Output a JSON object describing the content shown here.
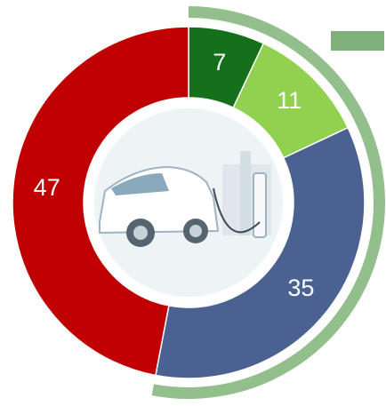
{
  "chart_data": {
    "type": "donut",
    "values": [
      7,
      11,
      35,
      47
    ],
    "colors": [
      "#14701a",
      "#92d050",
      "#4b6191",
      "#c00000"
    ],
    "ring": {
      "segments": [
        0,
        1,
        2
      ],
      "color": "#93bf8c"
    },
    "legend_color": "#7fb07a"
  }
}
